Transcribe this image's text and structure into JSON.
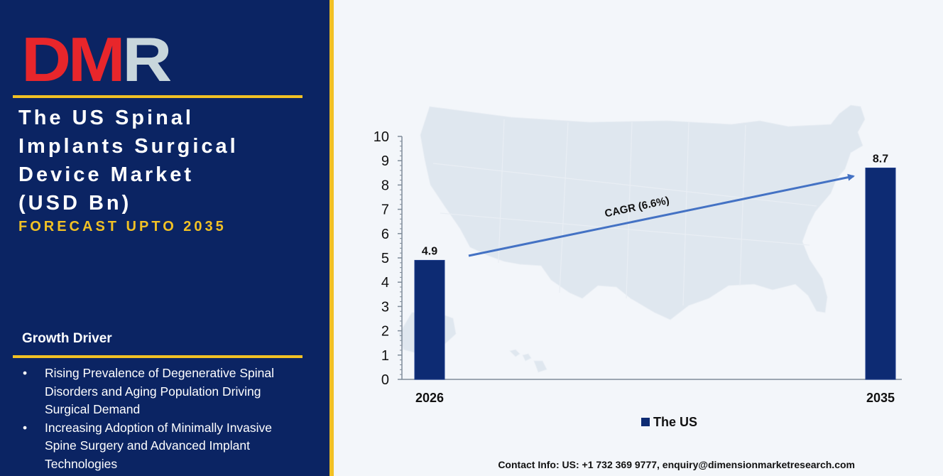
{
  "brand": {
    "logo_text": "DMR",
    "logo_colors": {
      "d": "#e8262b",
      "m": "#e8262b",
      "r": "#c8d6dc"
    }
  },
  "sidebar": {
    "title_lines": [
      "The US Spinal",
      "Implants Surgical",
      "Device Market",
      "(USD Bn)"
    ],
    "subtitle": "FORECAST UPTO 2035",
    "driver_heading": "Growth Driver",
    "drivers": [
      {
        "bullet": "•",
        "lines": [
          "Rising Prevalence of Degenerative Spinal",
          "Disorders and Aging Population Driving",
          "Surgical Demand"
        ]
      },
      {
        "bullet": "•",
        "lines": [
          "Increasing Adoption of Minimally Invasive",
          "Spine Surgery and Advanced Implant",
          "Technologies"
        ]
      }
    ]
  },
  "colors": {
    "panel": "#0b2463",
    "accent": "#f2c124",
    "bar": "#0d2b73",
    "arrow": "#4472c4",
    "map": "#dfe7ef"
  },
  "chart_data": {
    "type": "bar",
    "categories": [
      "2026",
      "2035"
    ],
    "series": [
      {
        "name": "The US",
        "values": [
          4.9,
          8.7
        ]
      }
    ],
    "data_labels": [
      "4.9",
      "8.7"
    ],
    "ylim": [
      0,
      10
    ],
    "yticks": [
      0,
      1,
      2,
      3,
      4,
      5,
      6,
      7,
      8,
      9,
      10
    ],
    "annotation": "CAGR (6.6%)",
    "legend_position": "bottom",
    "grid": false,
    "background_image": "us-map"
  },
  "footer": {
    "contact": "Contact Info: US: +1 732 369 9777, enquiry@dimensionmarketresearch.com"
  }
}
